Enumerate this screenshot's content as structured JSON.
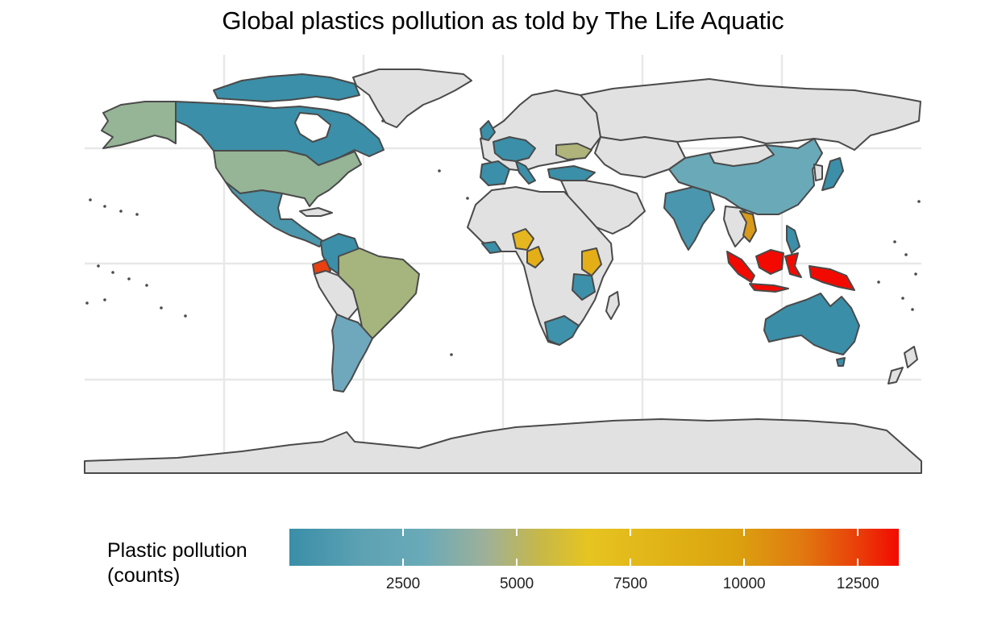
{
  "map": {
    "title": "Global plastics pollution as told by The Life Aquatic",
    "background_land_color": "#e1e1e1",
    "border_color": "#4a4a4a",
    "grid_color": "#e8e8e8",
    "highlight_regions": [
      {
        "name": "Canada",
        "color": "#3b8fa8"
      },
      {
        "name": "United States",
        "color": "#96b496"
      },
      {
        "name": "Alaska",
        "color": "#96b496"
      },
      {
        "name": "Mexico",
        "color": "#4b97ad"
      },
      {
        "name": "Brazil",
        "color": "#a6b47e"
      },
      {
        "name": "Colombia",
        "color": "#3b8fa8"
      },
      {
        "name": "Ecuador",
        "color": "#e84010"
      },
      {
        "name": "Argentina",
        "color": "#6fa8bd"
      },
      {
        "name": "China",
        "color": "#6aa9b8"
      },
      {
        "name": "India",
        "color": "#4a96ae"
      },
      {
        "name": "Australia",
        "color": "#3a8ea8"
      },
      {
        "name": "Indonesia",
        "color": "#f20a00"
      },
      {
        "name": "Japan",
        "color": "#3b8fa8"
      },
      {
        "name": "South Africa",
        "color": "#3f92ab"
      },
      {
        "name": "Nigeria",
        "color": "#e6b620"
      },
      {
        "name": "Kenya",
        "color": "#e4ae18"
      },
      {
        "name": "Tanzania",
        "color": "#3d90aa"
      },
      {
        "name": "Ukraine",
        "color": "#b0b47a"
      },
      {
        "name": "Vietnam",
        "color": "#d89a18"
      }
    ]
  },
  "legend": {
    "title_line1": "Plastic pollution",
    "title_line2": "(counts)",
    "min_value": 0,
    "max_value": 13400,
    "ticks": [
      2500,
      5000,
      7500,
      10000,
      12500
    ]
  }
}
